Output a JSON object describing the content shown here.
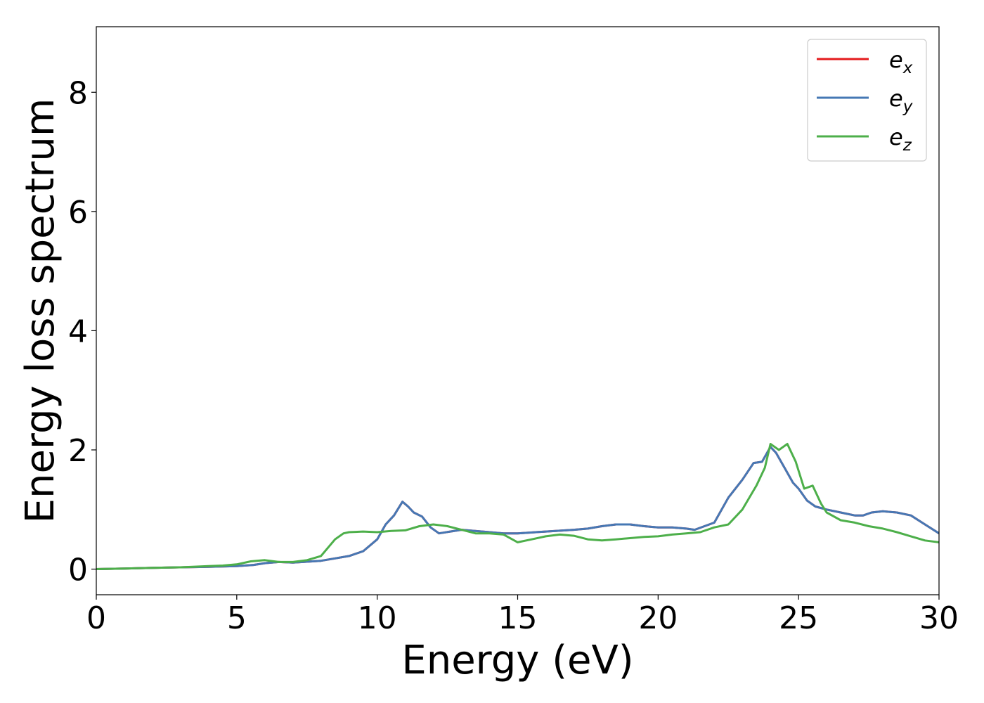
{
  "chart_data": {
    "type": "line",
    "title": "",
    "xlabel": "Energy (eV)",
    "ylabel": "Energy loss spectrum",
    "xlim": [
      0,
      30
    ],
    "ylim": [
      -0.43,
      9.1
    ],
    "xticks": [
      0,
      5,
      10,
      15,
      20,
      25,
      30
    ],
    "yticks": [
      0,
      2,
      4,
      6,
      8
    ],
    "xtick_labels": [
      "0",
      "5",
      "10",
      "15",
      "20",
      "25",
      "30"
    ],
    "ytick_labels": [
      "0",
      "2",
      "4",
      "6",
      "8"
    ],
    "grid": false,
    "legend_position": "top-right",
    "series": [
      {
        "name_base": "e",
        "name_sub": "x",
        "color": "#e41a1c",
        "x": [
          0,
          1,
          2,
          3,
          4,
          5,
          5.6,
          6,
          6.5,
          7,
          8,
          8.5,
          9,
          9.5,
          10,
          10.3,
          10.6,
          10.9,
          11.1,
          11.3,
          11.6,
          11.9,
          12.2,
          12.6,
          13,
          14,
          14.5,
          15,
          16,
          17,
          17.5,
          18,
          18.5,
          19,
          19.5,
          20,
          20.5,
          21,
          21.3,
          22,
          22.5,
          23,
          23.4,
          23.7,
          24,
          24.2,
          24.5,
          24.8,
          25,
          25.3,
          25.6,
          26,
          26.5,
          27,
          27.3,
          27.6,
          28,
          28.5,
          29,
          29.5,
          30
        ],
        "y": [
          0,
          0.01,
          0.02,
          0.03,
          0.04,
          0.05,
          0.07,
          0.1,
          0.12,
          0.11,
          0.14,
          0.18,
          0.22,
          0.3,
          0.5,
          0.75,
          0.9,
          1.13,
          1.05,
          0.95,
          0.88,
          0.7,
          0.6,
          0.63,
          0.66,
          0.62,
          0.6,
          0.6,
          0.63,
          0.66,
          0.68,
          0.72,
          0.75,
          0.75,
          0.72,
          0.7,
          0.7,
          0.68,
          0.66,
          0.78,
          1.2,
          1.5,
          1.78,
          1.8,
          2.05,
          1.95,
          1.7,
          1.45,
          1.35,
          1.15,
          1.05,
          1.0,
          0.95,
          0.9,
          0.9,
          0.95,
          0.97,
          0.95,
          0.9,
          0.75,
          0.6
        ]
      },
      {
        "name_base": "e",
        "name_sub": "y",
        "color": "#4678b4",
        "x": [
          0,
          1,
          2,
          3,
          4,
          5,
          5.6,
          6,
          6.5,
          7,
          8,
          8.5,
          9,
          9.5,
          10,
          10.3,
          10.6,
          10.9,
          11.1,
          11.3,
          11.6,
          11.9,
          12.2,
          12.6,
          13,
          14,
          14.5,
          15,
          16,
          17,
          17.5,
          18,
          18.5,
          19,
          19.5,
          20,
          20.5,
          21,
          21.3,
          22,
          22.5,
          23,
          23.4,
          23.7,
          24,
          24.2,
          24.5,
          24.8,
          25,
          25.3,
          25.6,
          26,
          26.5,
          27,
          27.3,
          27.6,
          28,
          28.5,
          29,
          29.5,
          30
        ],
        "y": [
          0,
          0.01,
          0.02,
          0.03,
          0.04,
          0.05,
          0.07,
          0.1,
          0.12,
          0.11,
          0.14,
          0.18,
          0.22,
          0.3,
          0.5,
          0.75,
          0.9,
          1.13,
          1.05,
          0.95,
          0.88,
          0.7,
          0.6,
          0.63,
          0.66,
          0.62,
          0.6,
          0.6,
          0.63,
          0.66,
          0.68,
          0.72,
          0.75,
          0.75,
          0.72,
          0.7,
          0.7,
          0.68,
          0.66,
          0.78,
          1.2,
          1.5,
          1.78,
          1.8,
          2.05,
          1.95,
          1.7,
          1.45,
          1.35,
          1.15,
          1.05,
          1.0,
          0.95,
          0.9,
          0.9,
          0.95,
          0.97,
          0.95,
          0.9,
          0.75,
          0.6
        ]
      },
      {
        "name_base": "e",
        "name_sub": "z",
        "color": "#4daf4a",
        "x": [
          0,
          1,
          2,
          3,
          4,
          4.5,
          5,
          5.5,
          6,
          6.5,
          7,
          7.5,
          8,
          8.5,
          8.8,
          9,
          9.5,
          10,
          10.5,
          11,
          11.5,
          12,
          12.5,
          13,
          13.5,
          14,
          14.5,
          15,
          15.5,
          16,
          16.5,
          17,
          17.5,
          18,
          18.5,
          19,
          19.5,
          20,
          20.5,
          21,
          21.5,
          22,
          22.5,
          23,
          23.5,
          23.8,
          24,
          24.3,
          24.6,
          24.9,
          25.2,
          25.5,
          25.8,
          26,
          26.5,
          27,
          27.5,
          28,
          28.5,
          29,
          29.5,
          30
        ],
        "y": [
          0,
          0.01,
          0.02,
          0.03,
          0.05,
          0.06,
          0.08,
          0.13,
          0.15,
          0.12,
          0.12,
          0.15,
          0.22,
          0.5,
          0.6,
          0.62,
          0.63,
          0.62,
          0.64,
          0.65,
          0.72,
          0.75,
          0.72,
          0.66,
          0.6,
          0.6,
          0.58,
          0.45,
          0.5,
          0.55,
          0.58,
          0.56,
          0.5,
          0.48,
          0.5,
          0.52,
          0.54,
          0.55,
          0.58,
          0.6,
          0.62,
          0.7,
          0.75,
          1.0,
          1.4,
          1.7,
          2.1,
          2.0,
          2.1,
          1.8,
          1.35,
          1.4,
          1.1,
          0.95,
          0.82,
          0.78,
          0.72,
          0.68,
          0.62,
          0.55,
          0.48,
          0.45
        ]
      }
    ]
  }
}
